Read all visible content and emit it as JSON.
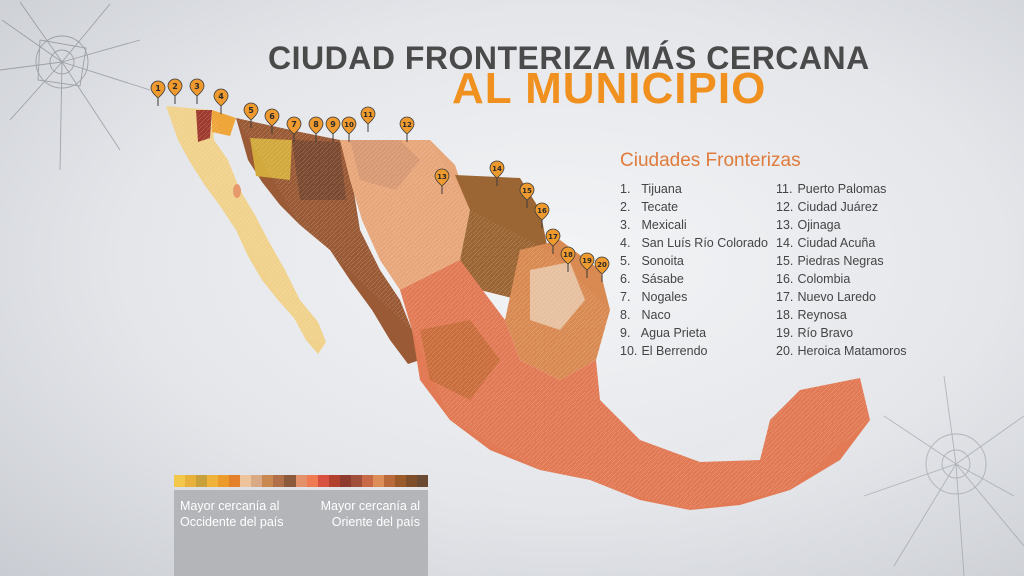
{
  "title": {
    "line1": "CIUDAD FRONTERIZA MÁS CERCANA",
    "line2": "AL MUNICIPIO"
  },
  "legend": {
    "heading": "Ciudades Fronterizas",
    "cities": [
      {
        "num": "1.",
        "name": "Tijuana"
      },
      {
        "num": "2.",
        "name": "Tecate"
      },
      {
        "num": "3.",
        "name": "Mexicali"
      },
      {
        "num": "4.",
        "name": "San Luís Río Colorado"
      },
      {
        "num": "5.",
        "name": "Sonoita"
      },
      {
        "num": "6.",
        "name": "Sásabe"
      },
      {
        "num": "7.",
        "name": "Nogales"
      },
      {
        "num": "8.",
        "name": "Naco"
      },
      {
        "num": "9.",
        "name": "Agua Prieta"
      },
      {
        "num": "10.",
        "name": "El Berrendo"
      },
      {
        "num": "11.",
        "name": "Puerto Palomas"
      },
      {
        "num": "12.",
        "name": "Ciudad Juárez"
      },
      {
        "num": "13.",
        "name": "Ojinaga"
      },
      {
        "num": "14.",
        "name": "Ciudad Acuña"
      },
      {
        "num": "15.",
        "name": "Piedras Negras"
      },
      {
        "num": "16.",
        "name": "Colombia"
      },
      {
        "num": "17.",
        "name": "Nuevo Laredo"
      },
      {
        "num": "18.",
        "name": "Reynosa"
      },
      {
        "num": "19.",
        "name": "Río Bravo"
      },
      {
        "num": "20.",
        "name": "Heroica Matamoros"
      }
    ]
  },
  "markers": [
    "1",
    "2",
    "3",
    "4",
    "5",
    "6",
    "7",
    "8",
    "9",
    "10",
    "11",
    "12",
    "13",
    "14",
    "15",
    "16",
    "17",
    "18",
    "19",
    "20"
  ],
  "scale": {
    "left_label": "Mayor cercanía al Occidente del país",
    "right_label": "Mayor cercanía al Oriente del país",
    "colors": [
      "#f3c84a",
      "#e8b13c",
      "#c9a13a",
      "#f0b33a",
      "#ec9a2a",
      "#e5802a",
      "#ecc39a",
      "#d9a884",
      "#c98850",
      "#b0704a",
      "#8c5a3c",
      "#e4906a",
      "#ef7b52",
      "#d85040",
      "#b2402e",
      "#8e3a2e",
      "#a04f3a",
      "#c86a48",
      "#dd8e58",
      "#b86a3a",
      "#9b5a2a",
      "#7e4e2a",
      "#6a4a32"
    ]
  },
  "colors": {
    "title_dark": "#4a4a4a",
    "title_accent": "#f0901e",
    "legend_heading": "#e07b3c",
    "marker": "#ee9a2e",
    "map_east": "#e27a55",
    "map_west": "#f0d28c"
  }
}
